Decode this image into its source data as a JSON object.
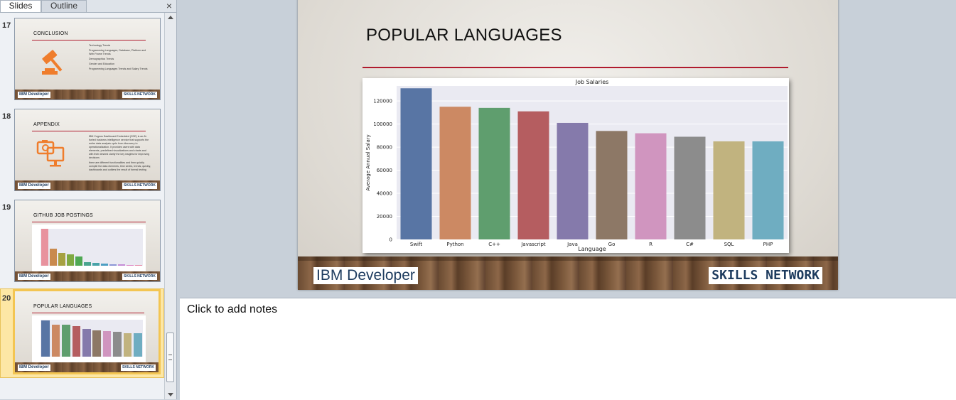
{
  "panel": {
    "tabs": [
      "Slides",
      "Outline"
    ],
    "close_glyph": "×"
  },
  "thumbnails": [
    {
      "number": "17",
      "title": "CONCLUSION",
      "icon": "gavel-icon",
      "bullets": [
        "Technology Trends",
        "Programming Languages, Database, Platform and Web Frame Trends",
        "Demographics Trends",
        "Gender and Education",
        "Programming Languages Trends and Salary Trends"
      ]
    },
    {
      "number": "18",
      "title": "APPENDIX",
      "icon": "camera-monitor-icon",
      "bullets": [
        "IBM Cognos Dashboard Embedded (CDE) is an AI-fueled business intelligence service that supports the entire data analysis cycle from discovery to operationalization. It provides users with data elements, predefined visualizations and charts and with their desired clarify the key insights for improving decisions",
        "there are different functionalities and then quickly compile the data elements, time series, trends, quickly, dashboards and outliers the result of formal testing"
      ]
    },
    {
      "number": "19",
      "title": "GITHUB JOB POSTINGS",
      "mini_chart_values": [
        100,
        46,
        34,
        31,
        25,
        10,
        8,
        6,
        4,
        3,
        2,
        2
      ]
    },
    {
      "number": "20",
      "title": "POPULAR LANGUAGES",
      "selected": true
    }
  ],
  "slide": {
    "title": "POPULAR LANGUAGES",
    "footer_left": "IBM Developer",
    "footer_right": "SKILLS NETWORK"
  },
  "chart_data": {
    "type": "bar",
    "title": "Job Salaries",
    "xlabel": "Language",
    "ylabel": "Average Annual Salary",
    "categories": [
      "Swift",
      "Python",
      "C++",
      "Javascript",
      "Java",
      "Go",
      "R",
      "C#",
      "SQL",
      "PHP"
    ],
    "values": [
      131000,
      115000,
      114000,
      111000,
      101000,
      94000,
      92000,
      89000,
      85000,
      85000
    ],
    "yticks": [
      0,
      20000,
      40000,
      60000,
      80000,
      100000,
      120000
    ],
    "ylim": [
      0,
      133000
    ],
    "grid": true,
    "colors": [
      "#5875a4",
      "#cc8963",
      "#5f9e6e",
      "#b55d60",
      "#857aab",
      "#8d7866",
      "#d095bf",
      "#8c8c8c",
      "#c1b37f",
      "#6fadc1"
    ],
    "plot_background": "#eaeaf2"
  },
  "notes": {
    "placeholder": "Click to add notes"
  },
  "colors": {
    "accent_rule": "#b01b2e",
    "selection": "#f3c552"
  }
}
